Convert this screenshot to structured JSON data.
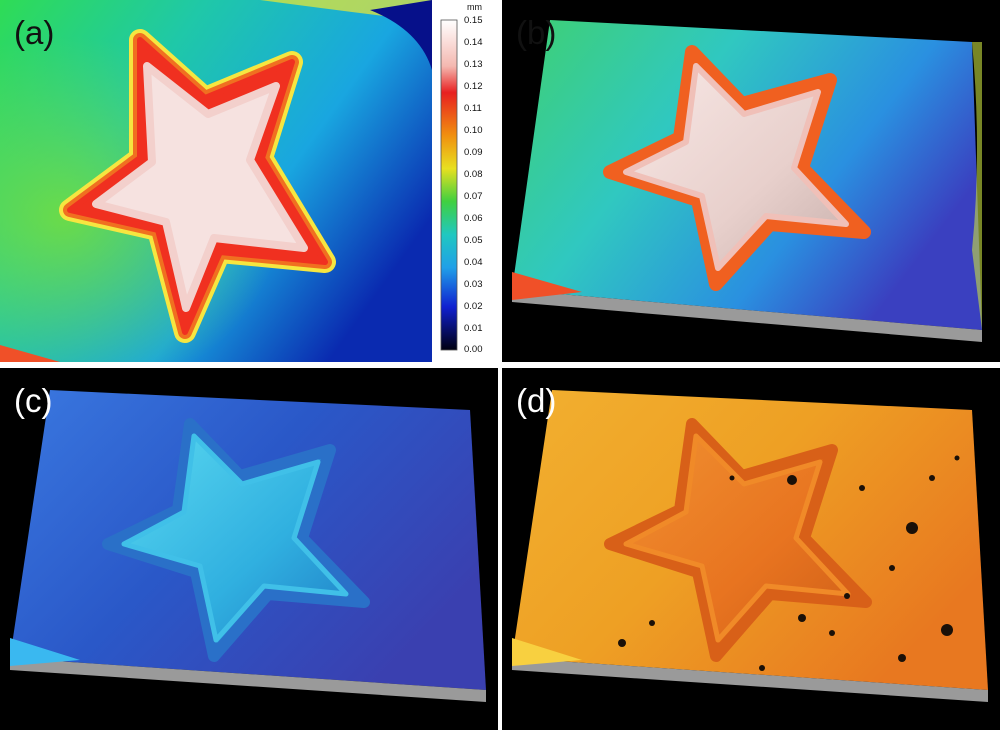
{
  "panels": {
    "a": {
      "label": "(a)"
    },
    "b": {
      "label": "(b)"
    },
    "c": {
      "label": "(c)"
    },
    "d": {
      "label": "(d)"
    }
  },
  "colorbar": {
    "unit": "mm",
    "ticks": [
      "0.15",
      "0.14",
      "0.13",
      "0.12",
      "0.11",
      "0.10",
      "0.09",
      "0.08",
      "0.07",
      "0.06",
      "0.05",
      "0.04",
      "0.03",
      "0.02",
      "0.01",
      "0.00"
    ]
  },
  "colors": {
    "star_top": "#f6e2e0",
    "star_rim": "#f03020",
    "heightmap_mid": "#22c8a0",
    "blue_render": "#2a4fc0",
    "orange_render": "#f0a020"
  }
}
